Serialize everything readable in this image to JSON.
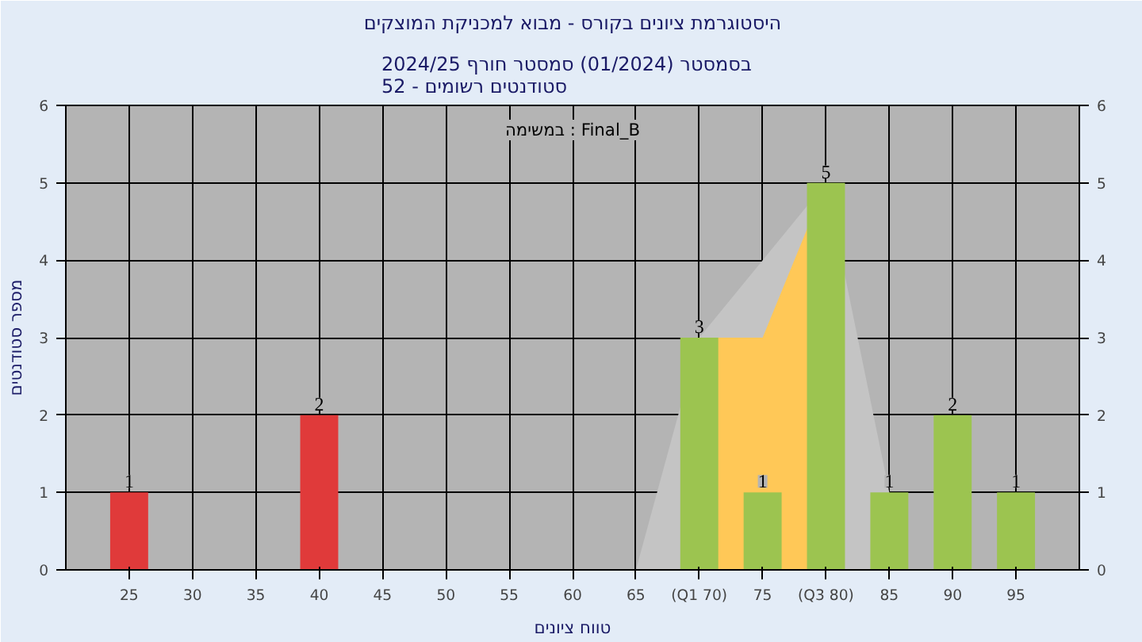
{
  "chart_data": {
    "type": "bar",
    "title": "היסטוגרמת ציונים בקורס - מבוא למכניקת המוצקים",
    "subtitle": "בסמסטר  (01/2024)  סמסטר חורף 2024/25\nסטודנטים רשומים - 52",
    "xlabel": "טווח ציונים",
    "ylabel": "מספר סטודנטים",
    "annotations": [
      "במשימה : Final_B"
    ],
    "xlim": [
      20,
      100
    ],
    "xticks": [
      25,
      30,
      35,
      40,
      45,
      50,
      55,
      60,
      65,
      {
        "value": 70,
        "label": "(Q1 70)"
      },
      75,
      {
        "value": 80,
        "label": "(Q3 80)"
      },
      85,
      90,
      95
    ],
    "ylim": [
      0,
      6
    ],
    "yticks": [
      0,
      1,
      2,
      3,
      4,
      5,
      6
    ],
    "y2lim": [
      0,
      6
    ],
    "y2ticks": [
      0,
      1,
      2,
      3,
      4,
      5,
      6
    ],
    "grid": true,
    "series": [
      {
        "type": "area",
        "color": "#c4c4c4",
        "x": [
          65,
          70,
          80,
          85
        ],
        "values": [
          0,
          3,
          5,
          1
        ]
      },
      {
        "type": "area",
        "color": "#ffc857",
        "x": [
          70,
          75,
          80
        ],
        "values": [
          3,
          3,
          5
        ]
      },
      {
        "x": [
          25,
          40,
          70,
          75,
          80,
          85,
          90,
          95
        ],
        "values": [
          1,
          2,
          3,
          1,
          5,
          1,
          2,
          1
        ],
        "value_labels": [
          "1",
          "2",
          "3",
          "1",
          "5",
          "1",
          "2",
          "1"
        ],
        "colors": [
          "#e03a3a",
          "#e03a3a",
          "#9cc450",
          "#9cc450",
          "#9cc450",
          "#9cc450",
          "#9cc450",
          "#9cc450"
        ]
      }
    ]
  }
}
